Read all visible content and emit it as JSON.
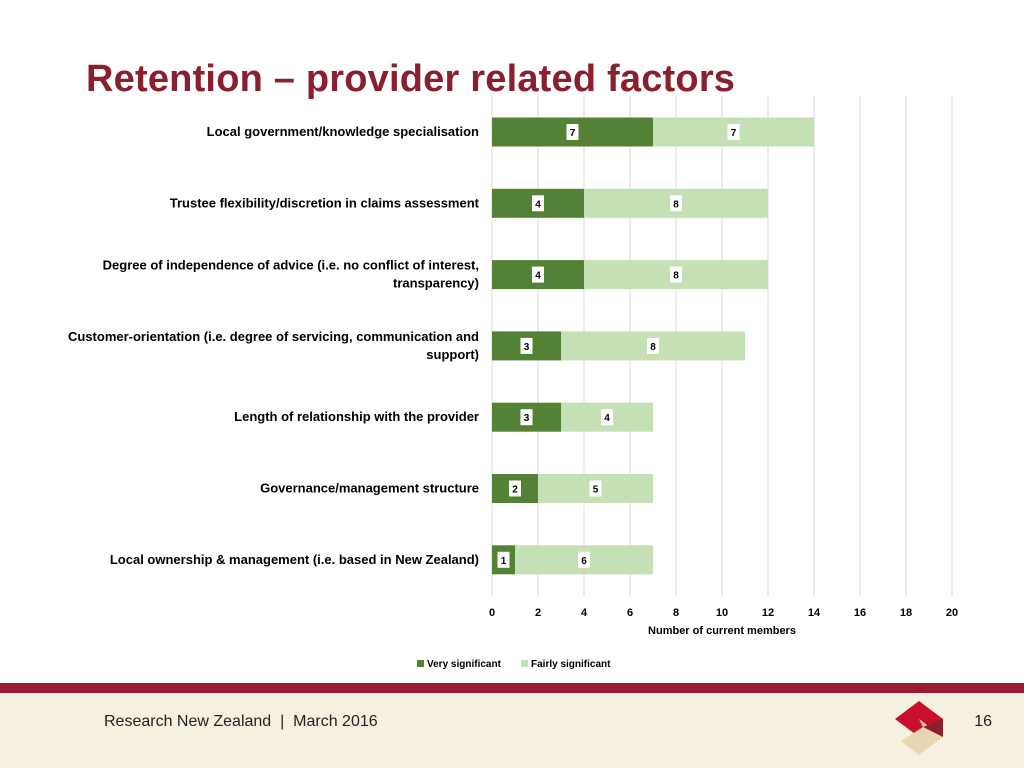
{
  "slide": {
    "title": "Retention – provider related factors",
    "footer_org": "Research New Zealand",
    "footer_sep": "|",
    "footer_date": "March 2016",
    "page_number": "16"
  },
  "colors": {
    "title": "#8a1f2e",
    "very_significant": "#538135",
    "fairly_significant": "#c5e0b4",
    "footer_rule": "#9b1b30",
    "footer_bg": "#f6f0e0"
  },
  "icons": {
    "logo": "research-nz-diamond-logo"
  },
  "chart_data": {
    "type": "bar",
    "orientation": "horizontal",
    "stacked": true,
    "title": "",
    "xlabel": "Number of current members",
    "ylabel": "",
    "xlim": [
      0,
      20
    ],
    "xticks": [
      "0",
      "2",
      "4",
      "6",
      "8",
      "10",
      "12",
      "14",
      "16",
      "18",
      "20"
    ],
    "grid": true,
    "legend_position": "bottom",
    "categories": [
      [
        "Local government/knowledge specialisation"
      ],
      [
        "Trustee flexibility/discretion in claims assessment"
      ],
      [
        "Degree of independence of advice (i.e. no conflict of interest,",
        "transparency)"
      ],
      [
        "Customer-orientation (i.e. degree of servicing, communication and",
        "support)"
      ],
      [
        "Length of relationship with the provider"
      ],
      [
        "Governance/management structure"
      ],
      [
        "Local ownership & management (i.e. based in New Zealand)"
      ]
    ],
    "series": [
      {
        "name": "Very significant",
        "color": "#538135",
        "values": [
          7,
          4,
          4,
          3,
          3,
          2,
          1
        ]
      },
      {
        "name": "Fairly significant",
        "color": "#c5e0b4",
        "values": [
          7,
          8,
          8,
          8,
          4,
          5,
          6
        ]
      }
    ]
  }
}
